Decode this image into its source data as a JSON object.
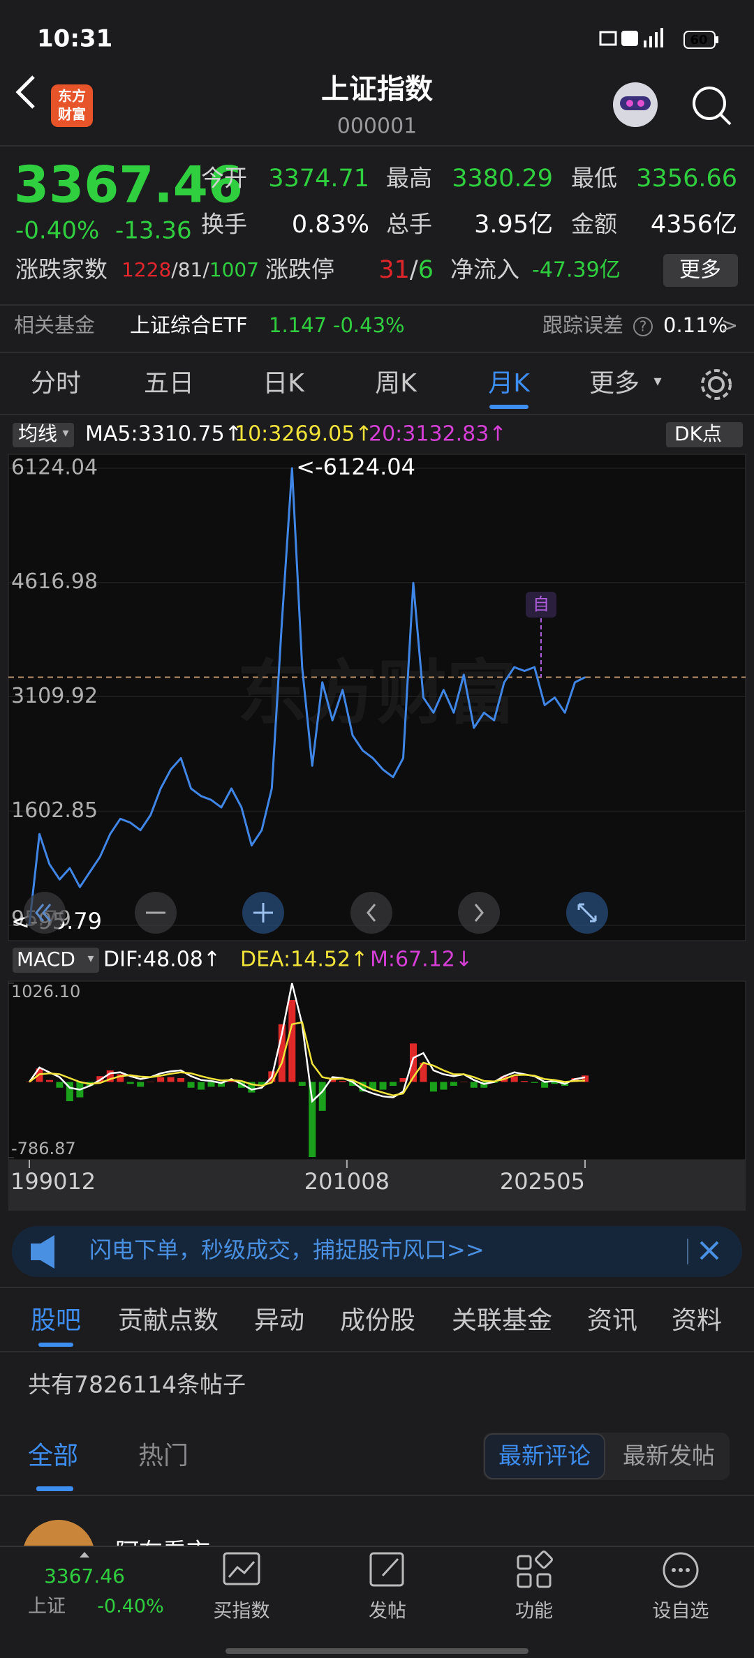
{
  "status": {
    "time": "10:31",
    "battery": "60"
  },
  "header": {
    "logo": [
      "东方",
      "财富"
    ],
    "title": "上证指数",
    "code": "000001"
  },
  "quote": {
    "price": 3367.46,
    "change_pct": "-0.40%",
    "change": -13.36,
    "fields": [
      {
        "label": "今开",
        "value": 3374.71,
        "color": "#2fcf3f"
      },
      {
        "label": "最高",
        "value": 3380.29,
        "color": "#2fcf3f"
      },
      {
        "label": "最低",
        "value": 3356.66,
        "color": "#2fcf3f"
      },
      {
        "label": "换手",
        "value": "0.83%",
        "color": "#ffffff"
      },
      {
        "label": "总手",
        "value": "3.95亿",
        "color": "#ffffff"
      },
      {
        "label": "金额",
        "value": "4356亿",
        "color": "#ffffff"
      }
    ],
    "breadth": {
      "label": "涨跌家数",
      "up": 1228,
      "flat": 81,
      "down": 1007,
      "sep": "/"
    },
    "limit": {
      "label": "涨跌停",
      "up": 31,
      "down": 6,
      "sep": "/"
    },
    "netflow": {
      "label": "净流入",
      "value": "-47.39亿"
    },
    "more": "更多"
  },
  "fund": {
    "label": "相关基金",
    "name": "上证综合ETF",
    "price": 1.147,
    "change": "-0.43%",
    "tracking_label": "跟踪误差",
    "help": "?",
    "tracking_value": "0.11%",
    "arrow": ">"
  },
  "period_tabs": {
    "items": [
      "分时",
      "五日",
      "日K",
      "周K",
      "月K",
      "更多"
    ],
    "selected": 4,
    "caret": "▾"
  },
  "chart_data": [
    {
      "type": "line",
      "indicator": "均线",
      "legend": [
        {
          "text": "MA5:3310.75↑",
          "color": "#ffffff"
        },
        {
          "text": "10:3269.05↑",
          "color": "#f2e33a"
        },
        {
          "text": "20:3132.83↑",
          "color": "#d63fd6"
        }
      ],
      "badge": "DK点",
      "ylim": [
        95.79,
        6124.04
      ],
      "yticks": [
        6124.04,
        4616.98,
        3109.92,
        1602.85,
        95.79
      ],
      "grid": true,
      "series": [
        {
          "color": "#3f86e6",
          "values": [
            95.79,
            1300,
            900,
            700,
            850,
            600,
            800,
            1000,
            1300,
            1500,
            1450,
            1350,
            1550,
            1900,
            2150,
            2300,
            1900,
            1800,
            1750,
            1650,
            1900,
            1650,
            1150,
            1350,
            1900,
            4100,
            6124.04,
            3500,
            2200,
            3300,
            2800,
            3200,
            2600,
            2400,
            2300,
            2150,
            2050,
            2300,
            4611,
            3100,
            2900,
            3200,
            2900,
            3400,
            2700,
            2900,
            2800,
            3300,
            3500,
            3450,
            3500,
            3000,
            3100,
            2900,
            3300,
            3367.46
          ]
        }
      ],
      "max_label": "<-6124.04",
      "min_label": "<-95.79",
      "marker": "自",
      "watermark": "东方财富",
      "x_labels": [
        "199012",
        "201008",
        "202505"
      ]
    },
    {
      "type": "macd",
      "indicator": "MACD",
      "legend": [
        {
          "text": "DIF:48.08↑",
          "color": "#ffffff"
        },
        {
          "text": "DEA:14.52↑",
          "color": "#f2e33a"
        },
        {
          "text": "M:67.12↓",
          "color": "#d63fd6"
        }
      ],
      "ylim": [
        -786.87,
        1026.1
      ],
      "yticks": [
        {
          "value": 1026.1,
          "label": "1026.10"
        },
        -786.87
      ],
      "series": [
        {
          "color": "#ffffff",
          "values": [
            0,
            150,
            100,
            50,
            -60,
            -80,
            -40,
            20,
            90,
            100,
            60,
            30,
            50,
            90,
            110,
            120,
            60,
            20,
            10,
            -10,
            30,
            -20,
            -80,
            -60,
            50,
            500,
            1026.1,
            600,
            -200,
            -100,
            50,
            40,
            0,
            -80,
            -120,
            -150,
            -160,
            -100,
            250,
            300,
            120,
            80,
            60,
            80,
            20,
            -20,
            0,
            60,
            100,
            80,
            60,
            0,
            10,
            -20,
            30,
            48.08
          ]
        },
        {
          "color": "#f2e33a",
          "values": [
            0,
            80,
            90,
            80,
            40,
            0,
            -20,
            -10,
            30,
            60,
            70,
            55,
            50,
            65,
            85,
            100,
            90,
            60,
            35,
            15,
            20,
            10,
            -25,
            -40,
            -5,
            200,
            600,
            620,
            190,
            50,
            30,
            35,
            20,
            -30,
            -80,
            -110,
            -140,
            -120,
            50,
            200,
            170,
            120,
            80,
            80,
            50,
            10,
            5,
            30,
            70,
            75,
            65,
            30,
            20,
            0,
            10,
            14.52
          ]
        },
        {
          "type": "bar",
          "colors": [
            "#e02a2a",
            "#1aa01a"
          ],
          "values": [
            0,
            140,
            20,
            -60,
            -200,
            -160,
            -40,
            60,
            120,
            80,
            -20,
            -50,
            0,
            50,
            50,
            40,
            -60,
            -80,
            -50,
            -50,
            20,
            -60,
            -110,
            -40,
            110,
            600,
            852,
            -40,
            -780,
            -300,
            40,
            10,
            -40,
            -100,
            -80,
            -80,
            -40,
            40,
            400,
            200,
            -100,
            -80,
            -40,
            0,
            -60,
            -60,
            -10,
            60,
            60,
            10,
            -10,
            -60,
            -20,
            -40,
            40,
            67.12
          ]
        }
      ]
    }
  ],
  "banner": {
    "text": "闪电下单，秒级成交，捕捉股市风口>>"
  },
  "info_tabs": {
    "items": [
      "股吧",
      "贡献点数",
      "异动",
      "成份股",
      "关联基金",
      "资讯",
      "资料"
    ],
    "selected": 0
  },
  "post_count": "共有7826114条帖子",
  "feed_tabs": {
    "items": [
      "全部",
      "热门"
    ],
    "selected": 0
  },
  "sort_toggle": {
    "items": [
      "最新评论",
      "最新发帖"
    ],
    "selected": 0
  },
  "posts": [
    {
      "author": "阿布看市"
    }
  ],
  "bottom_nav": {
    "index_name": "上证",
    "items": [
      "买指数",
      "发帖",
      "功能",
      "设自选"
    ]
  }
}
